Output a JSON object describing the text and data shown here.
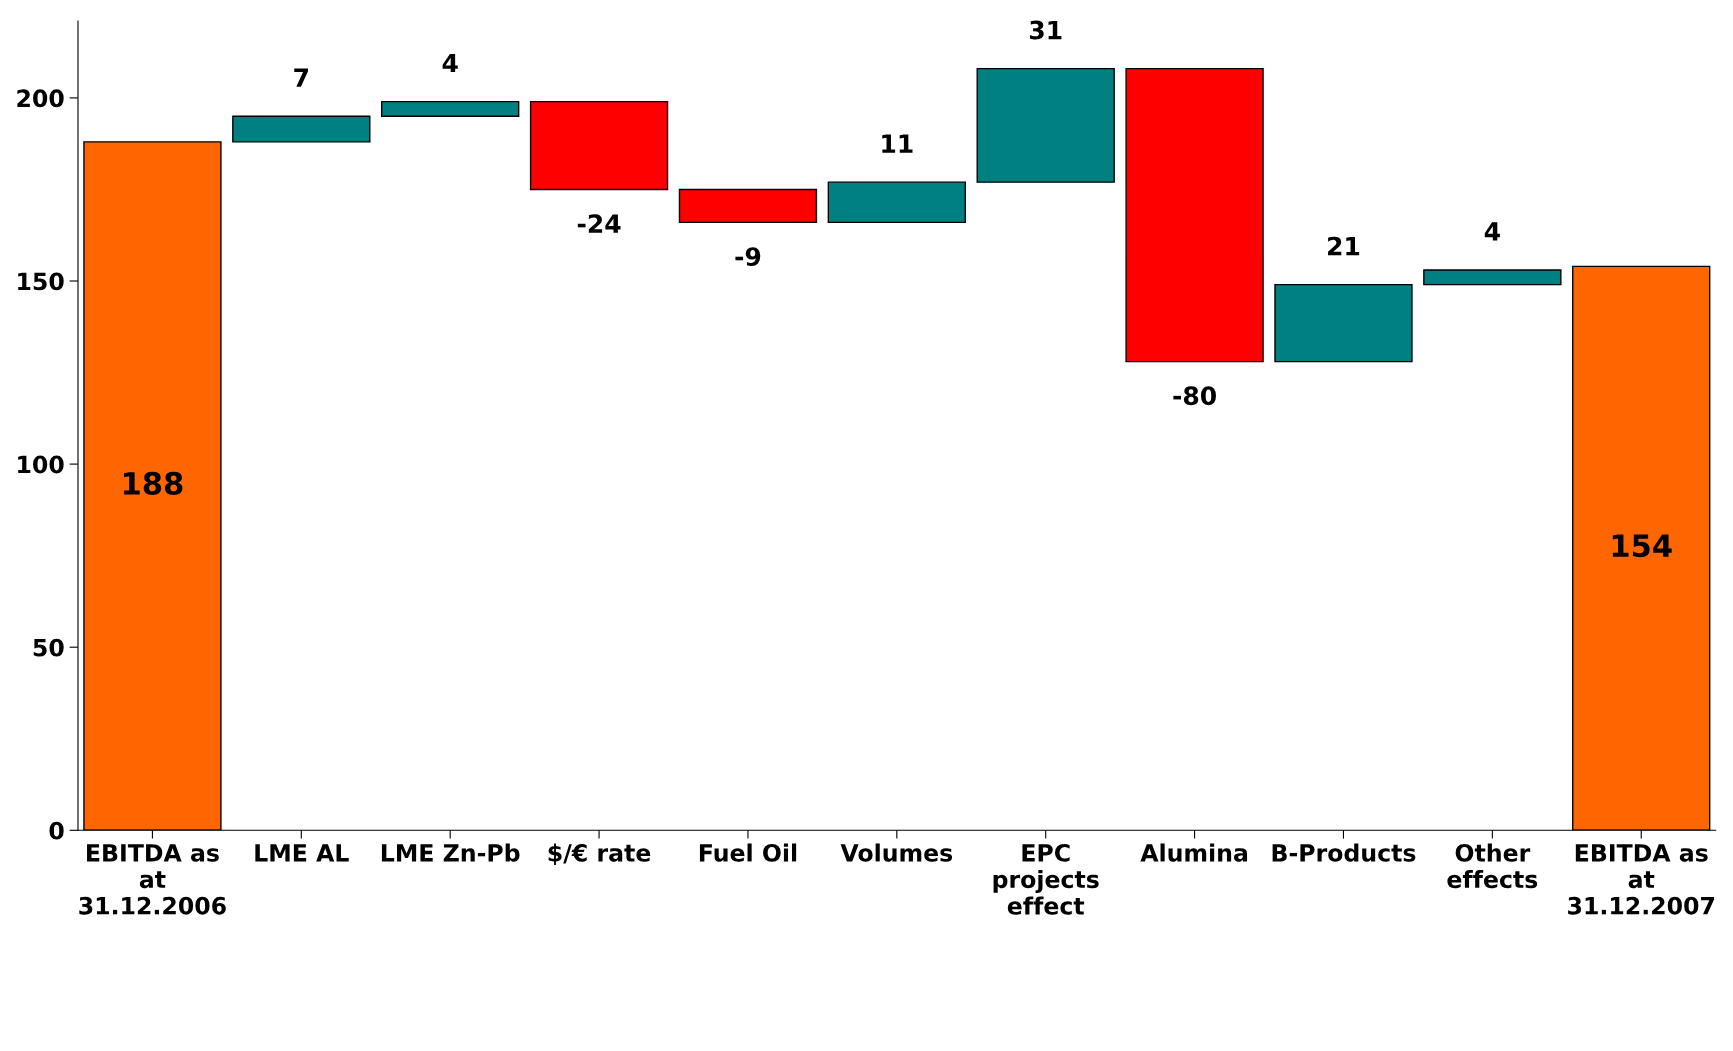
{
  "chart_data": {
    "type": "bar",
    "categories": [
      "EBITDA as\nat\n31.12.2006",
      "LME AL",
      "LME Zn-Pb",
      "$/€ rate",
      "Fuel Oil",
      "Volumes",
      "EPC\nprojects\neffect",
      "Alumina",
      "B-Products",
      "Other\neffects",
      "EBITDA as\nat\n31.12.2007"
    ],
    "values": [
      188,
      7,
      4,
      -24,
      -9,
      11,
      31,
      -80,
      21,
      4,
      154
    ],
    "base": [
      0,
      188,
      195,
      199,
      175,
      166,
      177,
      208,
      128,
      149,
      0
    ],
    "colors": [
      "#ff6600",
      "#008080",
      "#008080",
      "#ff0000",
      "#ff0000",
      "#008080",
      "#008080",
      "#ff0000",
      "#008080",
      "#008080",
      "#ff6600"
    ],
    "ylim": [
      0,
      221
    ],
    "yticks": [
      0,
      50,
      100,
      150,
      200
    ],
    "data_labels": true,
    "grid": false,
    "legend": false
  }
}
